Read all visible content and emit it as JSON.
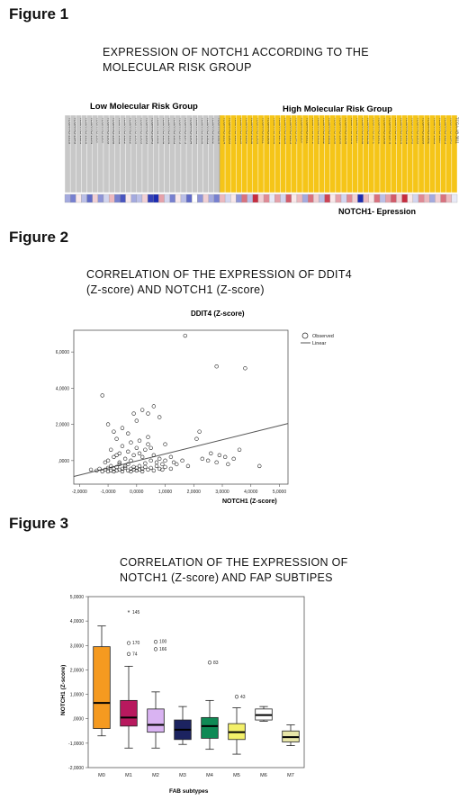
{
  "figure1": {
    "label": "Figure 1",
    "title_line1": "EXPRESSION OF NOTCH1 ACCORDING TO THE",
    "title_line2": "MOLECULAR RISK GROUP",
    "low_group_label": "Low Molecular Risk Group",
    "high_group_label": "High Molecular Risk Group",
    "expression_label": "NOTCH1- Epression",
    "low_count": 28,
    "high_count": 43,
    "colors": {
      "low": "#c8c8c8",
      "high": "#f5c518",
      "high_expr": "#c0142a",
      "low_expr": "#1c2bb0"
    },
    "low_sample_ids": [
      "TCGA-AB-2810",
      "TCGA-AB-2849",
      "TCGA-AB-2821",
      "TCGA-AB-2818",
      "TCGA-AB-2894",
      "TCGA-AB-2837",
      "TCGA-AB-2867",
      "TCGA-AB-2959",
      "TCGA-AB-2890",
      "TCGA-AB-2900",
      "TCGA-AB-2822",
      "TCGA-AB-2812",
      "TCGA-AB-2956",
      "TCGA-AB-2909",
      "TCGA-AB-2893",
      "TCGA-AB-2843",
      "TCGA-AB-2802",
      "TCGA-AB-2850",
      "TCGA-AB-2896",
      "TCGA-AB-2863",
      "TCGA-AB-2873",
      "TCGA-AB-2973",
      "TCGA-AB-2934",
      "TCGA-AB-2901",
      "TCGA-AB-2838",
      "TCGA-AB-2903",
      "TCGA-AB-2852",
      "TCGA-AB-2826"
    ],
    "high_sample_ids": [
      "TCGA-AB-2814",
      "TCGA-AB-2805",
      "TCGA-AB-2819",
      "TCGA-AB-2839",
      "TCGA-AB-2892",
      "TCGA-AB-2938",
      "TCGA-AB-2906",
      "TCGA-AB-2911",
      "TCGA-AB-2808",
      "TCGA-AB-2958",
      "TCGA-AB-2870",
      "TCGA-AB-2809",
      "TCGA-AB-2815",
      "TCGA-AB-2941",
      "TCGA-AB-2957",
      "TCGA-AB-2811",
      "TCGA-AB-2972",
      "TCGA-AB-2935",
      "TCGA-AB-2862",
      "TCGA-AB-2884",
      "TCGA-AB-2880",
      "TCGA-AB-2868",
      "TCGA-AB-2856",
      "TCGA-AB-2920",
      "TCGA-AB-2917",
      "TCGA-AB-2930",
      "TCGA-AB-2830",
      "TCGA-AB-2872",
      "TCGA-AB-2912",
      "TCGA-AB-2960",
      "TCGA-AB-2976",
      "TCGA-AB-2875",
      "TCGA-AB-2916",
      "TCGA-AB-2910",
      "TCGA-AB-2940",
      "TCGA-AB-2835",
      "TCGA-AB-2899",
      "TCGA-AB-2882",
      "TCGA-AB-2803",
      "TCGA-AB-2847",
      "TCGA-AB-2823",
      "TCGA-AB-2845",
      "TCGA-AB-3011"
    ],
    "expression_values": [
      -0.4,
      -0.6,
      0.1,
      -0.3,
      -0.7,
      0.2,
      -0.5,
      -0.2,
      0.3,
      -0.6,
      -0.8,
      0.1,
      -0.4,
      -0.3,
      0.2,
      -0.9,
      -1.0,
      0.4,
      -0.2,
      -0.6,
      0.1,
      -0.3,
      -0.7,
      0.0,
      -0.5,
      0.2,
      -0.4,
      -0.6,
      0.3,
      -0.2,
      0.1,
      -0.5,
      0.6,
      -0.3,
      0.9,
      0.2,
      0.5,
      -0.1,
      0.4,
      -0.2,
      0.7,
      0.1,
      0.3,
      -0.4,
      0.6,
      0.2,
      -0.3,
      0.8,
      0.1,
      0.4,
      -0.2,
      0.5,
      0.2,
      -1.0,
      0.3,
      0.1,
      0.6,
      -0.3,
      0.4,
      0.7,
      0.2,
      0.9,
      0.1,
      -0.2,
      0.5,
      0.3,
      -0.4,
      0.2,
      0.6,
      0.3,
      -0.1
    ]
  },
  "figure2": {
    "label": "Figure 2",
    "title_line1": "CORRELATION  OF THE EXPRESSION OF DDIT4",
    "title_line2": "(Z-score)  AND NOTCH1 (Z-score)",
    "chart_data": {
      "type": "scatter",
      "title": "DDIT4 (Z-score)",
      "xlabel": "NOTCH1 (Z-score)",
      "ylabel": "",
      "xlim": [
        -2.2,
        5.3
      ],
      "ylim": [
        -1.3,
        7.2
      ],
      "x_ticks": [
        -2,
        -1,
        0,
        1,
        2,
        3,
        4,
        5
      ],
      "x_tick_labels": [
        "-2,0000",
        "-1,0000",
        "0,0000",
        "1,0000",
        "2,0000",
        "3,0000",
        "4,0000",
        "5,0000"
      ],
      "y_ticks": [
        0,
        2,
        4,
        6
      ],
      "y_tick_labels": [
        ",0000",
        "2,0000",
        "4,0000",
        "6,0000"
      ],
      "legend": {
        "position": "top-right",
        "entries": [
          "Observed",
          "Linear"
        ]
      },
      "fit_line": {
        "slope": 0.39,
        "intercept": -0.02
      },
      "points": [
        [
          -1.6,
          -0.5
        ],
        [
          -1.4,
          -0.55
        ],
        [
          -1.3,
          -0.45
        ],
        [
          -1.2,
          -0.6
        ],
        [
          -1.1,
          -0.5
        ],
        [
          -1.0,
          -0.4
        ],
        [
          -1.0,
          -0.6
        ],
        [
          -0.9,
          -0.3
        ],
        [
          -0.9,
          -0.55
        ],
        [
          -0.8,
          -0.45
        ],
        [
          -0.8,
          -0.6
        ],
        [
          -0.7,
          -0.35
        ],
        [
          -0.7,
          -0.55
        ],
        [
          -0.6,
          -0.5
        ],
        [
          -0.6,
          -0.2
        ],
        [
          -0.5,
          -0.45
        ],
        [
          -0.5,
          -0.6
        ],
        [
          -0.4,
          -0.4
        ],
        [
          -0.4,
          -0.3
        ],
        [
          -0.3,
          -0.55
        ],
        [
          -0.3,
          -0.2
        ],
        [
          -0.2,
          -0.45
        ],
        [
          -0.2,
          -0.6
        ],
        [
          -0.1,
          -0.35
        ],
        [
          -0.1,
          -0.5
        ],
        [
          0.0,
          -0.4
        ],
        [
          0.0,
          -0.55
        ],
        [
          0.1,
          -0.3
        ],
        [
          0.1,
          -0.5
        ],
        [
          0.2,
          -0.45
        ],
        [
          0.2,
          -0.6
        ],
        [
          0.3,
          -0.35
        ],
        [
          0.4,
          -0.5
        ],
        [
          0.5,
          -0.4
        ],
        [
          0.6,
          -0.55
        ],
        [
          0.7,
          -0.3
        ],
        [
          0.8,
          -0.45
        ],
        [
          0.9,
          -0.5
        ],
        [
          1.0,
          -0.35
        ],
        [
          1.2,
          -0.45
        ],
        [
          -1.0,
          0.0
        ],
        [
          -0.8,
          0.2
        ],
        [
          -0.6,
          0.4
        ],
        [
          -0.5,
          0.8
        ],
        [
          -0.7,
          1.2
        ],
        [
          -0.9,
          0.6
        ],
        [
          -0.4,
          0.1
        ],
        [
          -0.3,
          0.5
        ],
        [
          -0.2,
          1.0
        ],
        [
          -0.1,
          0.3
        ],
        [
          0.0,
          0.7
        ],
        [
          0.1,
          1.1
        ],
        [
          0.2,
          0.2
        ],
        [
          0.3,
          0.6
        ],
        [
          0.4,
          0.9
        ],
        [
          0.5,
          0.0
        ],
        [
          0.6,
          0.3
        ],
        [
          0.7,
          -0.1
        ],
        [
          0.8,
          0.1
        ],
        [
          1.0,
          0.0
        ],
        [
          1.2,
          0.2
        ],
        [
          1.4,
          -0.2
        ],
        [
          1.6,
          0.0
        ],
        [
          -1.1,
          -0.1
        ],
        [
          -0.6,
          -0.1
        ],
        [
          -0.2,
          0.0
        ],
        [
          0.3,
          -0.15
        ],
        [
          0.9,
          -0.2
        ],
        [
          1.3,
          -0.1
        ],
        [
          1.8,
          -0.3
        ],
        [
          -0.8,
          1.6
        ],
        [
          -0.5,
          1.8
        ],
        [
          -0.3,
          1.5
        ],
        [
          0.0,
          2.2
        ],
        [
          0.2,
          2.8
        ],
        [
          0.4,
          2.6
        ],
        [
          0.6,
          3.0
        ],
        [
          -0.1,
          2.6
        ],
        [
          0.8,
          2.4
        ],
        [
          1.0,
          0.9
        ],
        [
          -1.2,
          3.6
        ],
        [
          -1.0,
          2.0
        ],
        [
          0.4,
          1.3
        ],
        [
          -0.7,
          0.3
        ],
        [
          0.1,
          0.4
        ],
        [
          0.5,
          0.7
        ],
        [
          1.7,
          6.9
        ],
        [
          2.8,
          5.2
        ],
        [
          3.8,
          5.1
        ],
        [
          2.1,
          1.2
        ],
        [
          2.2,
          1.6
        ],
        [
          2.5,
          0.0
        ],
        [
          2.6,
          0.4
        ],
        [
          2.8,
          -0.1
        ],
        [
          2.9,
          0.3
        ],
        [
          3.1,
          0.2
        ],
        [
          3.2,
          -0.2
        ],
        [
          3.4,
          0.1
        ],
        [
          3.6,
          0.6
        ],
        [
          4.3,
          -0.3
        ],
        [
          2.3,
          0.1
        ]
      ]
    }
  },
  "figure3": {
    "label": "Figure 3",
    "title_line1": "CORRELATION  OF THE EXPRESSION OF",
    "title_line2": "NOTCH1 (Z-score) AND FAP SUBTIPES",
    "chart_data": {
      "type": "boxplot",
      "xlabel": "FAB subtypes",
      "ylabel": "NOTCH1 (Z-score)",
      "ylim": [
        -2,
        5
      ],
      "y_ticks": [
        -2,
        -1,
        0,
        1,
        2,
        3,
        4,
        5
      ],
      "y_tick_labels": [
        "-2,0000",
        "-1,0000",
        ",0000",
        "1,0000",
        "2,0000",
        "3,0000",
        "4,0000",
        "5,0000"
      ],
      "categories": [
        "M0",
        "M1",
        "M2",
        "M3",
        "M4",
        "M5",
        "M6",
        "M7"
      ],
      "boxes": [
        {
          "name": "M0",
          "min": -0.7,
          "q1": -0.4,
          "median": 0.65,
          "q3": 2.95,
          "max": 3.8,
          "color": "#f59a20"
        },
        {
          "name": "M1",
          "min": -1.2,
          "q1": -0.3,
          "median": 0.05,
          "q3": 0.75,
          "max": 2.15,
          "color": "#b8195e"
        },
        {
          "name": "M2",
          "min": -1.2,
          "q1": -0.55,
          "median": -0.25,
          "q3": 0.4,
          "max": 1.1,
          "color": "#d9b3f2"
        },
        {
          "name": "M3",
          "min": -1.05,
          "q1": -0.85,
          "median": -0.45,
          "q3": -0.05,
          "max": 0.5,
          "color": "#1c2360"
        },
        {
          "name": "M4",
          "min": -1.25,
          "q1": -0.8,
          "median": -0.3,
          "q3": 0.05,
          "max": 0.75,
          "color": "#0f8a55"
        },
        {
          "name": "M5",
          "min": -1.45,
          "q1": -0.85,
          "median": -0.55,
          "q3": -0.2,
          "max": 0.45,
          "color": "#f3f06a"
        },
        {
          "name": "M6",
          "min": -0.1,
          "q1": -0.05,
          "median": 0.15,
          "q3": 0.4,
          "max": 0.5,
          "color": "#ffffff"
        },
        {
          "name": "M7",
          "min": -1.1,
          "q1": -0.95,
          "median": -0.75,
          "q3": -0.5,
          "max": -0.25,
          "color": "#e8e6a8"
        }
      ],
      "outliers": [
        {
          "category": "M1",
          "value": 4.35,
          "label": "145",
          "marker": "star"
        },
        {
          "category": "M1",
          "value": 3.1,
          "label": "170",
          "marker": "circle"
        },
        {
          "category": "M1",
          "value": 2.65,
          "label": "74",
          "marker": "circle"
        },
        {
          "category": "M2",
          "value": 3.15,
          "label": "100",
          "marker": "circle"
        },
        {
          "category": "M2",
          "value": 2.85,
          "label": "166",
          "marker": "circle"
        },
        {
          "category": "M4",
          "value": 2.3,
          "label": "83",
          "marker": "circle"
        },
        {
          "category": "M5",
          "value": 0.9,
          "label": "43",
          "marker": "circle"
        }
      ]
    }
  }
}
